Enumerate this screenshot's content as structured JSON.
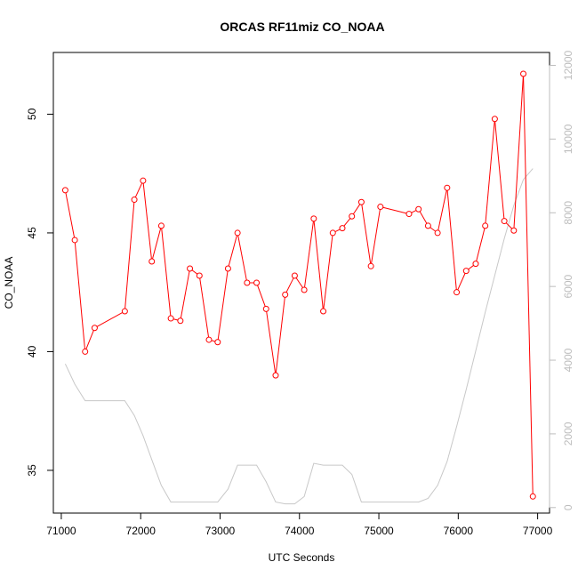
{
  "chart_data": {
    "type": "line",
    "title": "ORCAS RF11miz CO_NOAA",
    "xlabel": "UTC Seconds",
    "ylabel": "CO_NOAA",
    "xlim": [
      70900,
      77150
    ],
    "ylim": [
      33.2,
      52.6
    ],
    "y2lim": [
      -150,
      12350
    ],
    "x_ticks": [
      71000,
      72000,
      73000,
      74000,
      75000,
      76000,
      77000
    ],
    "y_ticks": [
      35,
      40,
      45,
      50
    ],
    "y2_ticks": [
      0,
      2000,
      4000,
      6000,
      8000,
      10000,
      12000
    ],
    "colors": {
      "series": "#ff0000",
      "secondary": "#c8c8c8"
    },
    "series": [
      {
        "axis": "left",
        "style": "line-points",
        "x": [
          71050,
          71170,
          71300,
          71420,
          71800,
          71920,
          72030,
          72140,
          72260,
          72380,
          72500,
          72620,
          72740,
          72860,
          72970,
          73100,
          73220,
          73340,
          73460,
          73580,
          73700,
          73820,
          73940,
          74060,
          74180,
          74300,
          74420,
          74540,
          74660,
          74780,
          74900,
          75020,
          75380,
          75500,
          75620,
          75740,
          75860,
          75980,
          76100,
          76220,
          76340,
          76460,
          76580,
          76700,
          76820,
          76940
        ],
        "values": [
          46.8,
          44.7,
          40.0,
          41.0,
          41.7,
          46.4,
          47.2,
          43.8,
          45.3,
          41.4,
          41.3,
          43.5,
          43.2,
          40.5,
          40.4,
          43.5,
          45.0,
          42.9,
          42.9,
          41.8,
          39.0,
          42.4,
          43.2,
          42.6,
          45.6,
          41.7,
          45.0,
          45.2,
          45.7,
          46.3,
          43.6,
          46.1,
          45.8,
          46.0,
          45.3,
          45.0,
          46.9,
          42.5,
          43.4,
          43.7,
          45.3,
          49.8,
          45.5,
          45.1,
          51.7,
          33.9
        ]
      },
      {
        "axis": "right",
        "style": "line",
        "x": [
          71050,
          71170,
          71300,
          71420,
          71800,
          71920,
          72030,
          72140,
          72260,
          72380,
          72500,
          72620,
          72740,
          72860,
          72970,
          73100,
          73220,
          73340,
          73460,
          73580,
          73700,
          73820,
          73940,
          74060,
          74180,
          74300,
          74420,
          74540,
          74660,
          74780,
          74900,
          75020,
          75380,
          75500,
          75620,
          75740,
          75860,
          75980,
          76100,
          76220,
          76340,
          76460,
          76580,
          76700,
          76820,
          76940
        ],
        "values": [
          3900,
          3350,
          2900,
          2900,
          2900,
          2500,
          1950,
          1300,
          600,
          150,
          150,
          150,
          150,
          150,
          150,
          500,
          1150,
          1150,
          1150,
          700,
          150,
          100,
          100,
          300,
          1200,
          1150,
          1150,
          1150,
          900,
          150,
          150,
          150,
          150,
          150,
          250,
          600,
          1250,
          2200,
          3200,
          4250,
          5300,
          6300,
          7300,
          8200,
          8900,
          9200
        ]
      }
    ]
  }
}
